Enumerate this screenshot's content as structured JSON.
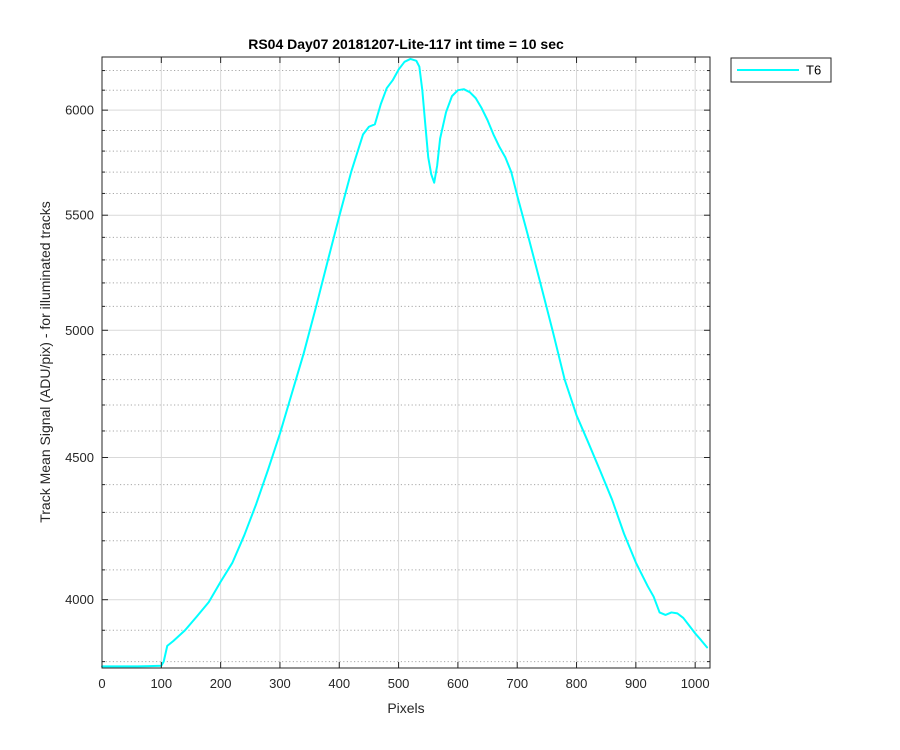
{
  "chart_data": {
    "type": "line",
    "title": "RS04 Day07 20181207-Lite-117 int time = 10 sec",
    "xlabel": "Pixels",
    "ylabel": "Track Mean Signal (ADU/pix) - for illuminated tracks",
    "xlim": [
      0,
      1025
    ],
    "ylim": [
      3780,
      6270
    ],
    "y_scale": "log",
    "x_ticks": [
      0,
      100,
      200,
      300,
      400,
      500,
      600,
      700,
      800,
      900,
      1000
    ],
    "x_tick_labels": [
      "0",
      "100",
      "200",
      "300",
      "400",
      "500",
      "600",
      "700",
      "800",
      "900",
      "1000"
    ],
    "y_ticks": [
      4000,
      4500,
      5000,
      5500,
      6000
    ],
    "y_tick_labels": [
      "4000",
      "4500",
      "5000",
      "5500",
      "6000"
    ],
    "y_minor_ticks": [
      3800,
      3900,
      4100,
      4200,
      4300,
      4400,
      4600,
      4700,
      4800,
      4900,
      5100,
      5200,
      5300,
      5400,
      5600,
      5700,
      5800,
      5900,
      6100,
      6200
    ],
    "grid": true,
    "minor_grid": true,
    "legend_position": "outside-top-right",
    "series": [
      {
        "name": "T6",
        "color": "#00FFFF",
        "x": [
          0,
          20,
          40,
          60,
          80,
          100,
          104,
          110,
          120,
          140,
          160,
          180,
          200,
          220,
          240,
          260,
          280,
          300,
          320,
          340,
          360,
          380,
          400,
          420,
          440,
          450,
          460,
          470,
          480,
          490,
          500,
          510,
          520,
          530,
          535,
          540,
          545,
          550,
          555,
          560,
          565,
          570,
          580,
          590,
          600,
          610,
          620,
          630,
          640,
          650,
          660,
          670,
          680,
          690,
          700,
          720,
          740,
          760,
          780,
          800,
          820,
          840,
          860,
          880,
          900,
          920,
          930,
          940,
          950,
          960,
          970,
          980,
          990,
          1000,
          1010,
          1020
        ],
        "values": [
          3785,
          3785,
          3785,
          3785,
          3786,
          3787,
          3800,
          3850,
          3865,
          3900,
          3945,
          3992,
          4060,
          4125,
          4220,
          4330,
          4455,
          4590,
          4745,
          4905,
          5090,
          5290,
          5495,
          5700,
          5880,
          5918,
          5930,
          6030,
          6110,
          6150,
          6205,
          6245,
          6260,
          6250,
          6220,
          6100,
          5930,
          5770,
          5690,
          5650,
          5730,
          5860,
          5990,
          6070,
          6100,
          6105,
          6090,
          6060,
          6010,
          5950,
          5880,
          5820,
          5770,
          5700,
          5590,
          5390,
          5190,
          4995,
          4800,
          4660,
          4555,
          4450,
          4345,
          4225,
          4125,
          4045,
          4010,
          3958,
          3950,
          3958,
          3955,
          3940,
          3915,
          3890,
          3868,
          3845
        ]
      }
    ]
  }
}
